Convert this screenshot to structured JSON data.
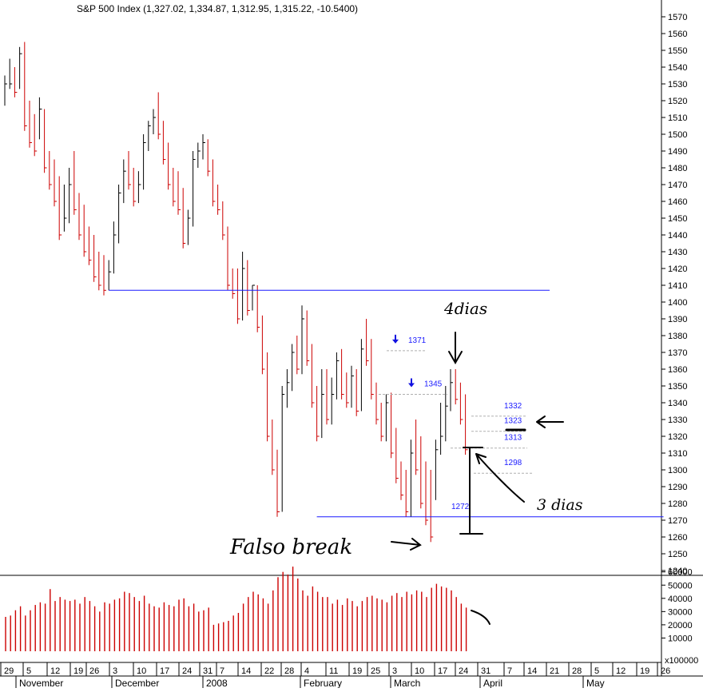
{
  "chart_data": {
    "type": "ohlc",
    "title": "S&P 500 Index (1,327.02, 1,334.87, 1,312.95, 1,315.22, -10.5400)",
    "colors": {
      "up": "#000000",
      "down": "#cc0000",
      "support": "#1a1aff",
      "level_text": "#1a1aff",
      "level_line": "#b0b0b0"
    },
    "price_axis": {
      "min": 1230,
      "max": 1575,
      "ticks": [
        1240,
        1250,
        1260,
        1270,
        1280,
        1290,
        1300,
        1310,
        1320,
        1330,
        1340,
        1350,
        1360,
        1370,
        1380,
        1390,
        1400,
        1410,
        1420,
        1430,
        1440,
        1450,
        1460,
        1470,
        1480,
        1490,
        1500,
        1510,
        1520,
        1530,
        1540,
        1550,
        1560,
        1570
      ]
    },
    "volume_axis": {
      "min": 0,
      "max": 65000,
      "ticks": [
        10000,
        20000,
        30000,
        40000,
        50000,
        60000
      ],
      "tick_labels": [
        "10000",
        "20000",
        "30000",
        "40000",
        "50000",
        "60000"
      ],
      "unit_label": "x100000"
    },
    "x_ticks": [
      "29",
      "5",
      "12",
      "19",
      "26",
      "3",
      "10",
      "17",
      "24",
      "31",
      "7",
      "14",
      "22",
      "28",
      "4",
      "11",
      "19",
      "25",
      "3",
      "10",
      "17",
      "24",
      "31",
      "7",
      "14",
      "21",
      "28",
      "5",
      "12",
      "19",
      "26"
    ],
    "months": [
      "November",
      "December",
      "2008",
      "February",
      "March",
      "April",
      "May"
    ],
    "bars": [
      [
        1520,
        1535,
        1530
      ],
      [
        1538,
        1545,
        1530
      ],
      [
        1532,
        1540,
        1525
      ],
      [
        1530,
        1552,
        1548
      ],
      [
        1540,
        1555,
        1505
      ],
      [
        1515,
        1520,
        1495
      ],
      [
        1505,
        1512,
        1490
      ],
      [
        1500,
        1522,
        1515
      ],
      [
        1510,
        1515,
        1480
      ],
      [
        1478,
        1490,
        1470
      ],
      [
        1470,
        1485,
        1460
      ],
      [
        1462,
        1475,
        1440
      ],
      [
        1445,
        1470,
        1450
      ],
      [
        1450,
        1480,
        1470
      ],
      [
        1468,
        1490,
        1455
      ],
      [
        1455,
        1465,
        1440
      ],
      [
        1442,
        1458,
        1430
      ],
      [
        1430,
        1445,
        1425
      ],
      [
        1425,
        1440,
        1415
      ],
      [
        1418,
        1430,
        1410
      ],
      [
        1412,
        1428,
        1407
      ],
      [
        1410,
        1425,
        1418
      ],
      [
        1420,
        1448,
        1440
      ],
      [
        1438,
        1470,
        1465
      ],
      [
        1462,
        1485,
        1478
      ],
      [
        1480,
        1490,
        1470
      ],
      [
        1472,
        1480,
        1460
      ],
      [
        1462,
        1478,
        1470
      ],
      [
        1470,
        1500,
        1495
      ],
      [
        1493,
        1508,
        1505
      ],
      [
        1503,
        1515,
        1510
      ],
      [
        1512,
        1525,
        1500
      ],
      [
        1500,
        1508,
        1485
      ],
      [
        1484,
        1495,
        1470
      ],
      [
        1470,
        1480,
        1460
      ],
      [
        1460,
        1478,
        1455
      ],
      [
        1455,
        1468,
        1435
      ],
      [
        1437,
        1455,
        1450
      ],
      [
        1448,
        1490,
        1485
      ],
      [
        1483,
        1495,
        1490
      ],
      [
        1488,
        1500,
        1495
      ],
      [
        1493,
        1497,
        1478
      ],
      [
        1477,
        1485,
        1460
      ],
      [
        1460,
        1470,
        1455
      ],
      [
        1455,
        1460,
        1440
      ],
      [
        1440,
        1445,
        1410
      ],
      [
        1412,
        1420,
        1405
      ],
      [
        1405,
        1420,
        1390
      ],
      [
        1392,
        1430,
        1420
      ],
      [
        1418,
        1425,
        1395
      ],
      [
        1398,
        1410,
        1410
      ],
      [
        1410,
        1410,
        1385
      ],
      [
        1385,
        1392,
        1360
      ],
      [
        1360,
        1370,
        1320
      ],
      [
        1320,
        1330,
        1300
      ],
      [
        1300,
        1312,
        1275
      ],
      [
        1278,
        1350,
        1345
      ],
      [
        1340,
        1360,
        1352
      ],
      [
        1350,
        1375,
        1370
      ],
      [
        1365,
        1380,
        1360
      ],
      [
        1360,
        1398,
        1390
      ],
      [
        1388,
        1395,
        1365
      ],
      [
        1365,
        1375,
        1340
      ],
      [
        1338,
        1350,
        1320
      ],
      [
        1322,
        1360,
        1345
      ],
      [
        1342,
        1360,
        1330
      ],
      [
        1330,
        1355,
        1345
      ],
      [
        1345,
        1370,
        1365
      ],
      [
        1363,
        1372,
        1345
      ],
      [
        1345,
        1358,
        1340
      ],
      [
        1340,
        1362,
        1356
      ],
      [
        1355,
        1360,
        1335
      ],
      [
        1338,
        1378,
        1372
      ],
      [
        1370,
        1390,
        1365
      ],
      [
        1368,
        1378,
        1345
      ],
      [
        1345,
        1352,
        1330
      ],
      [
        1330,
        1340,
        1320
      ],
      [
        1320,
        1345,
        1340
      ],
      [
        1338,
        1346,
        1310
      ],
      [
        1310,
        1325,
        1295
      ],
      [
        1296,
        1305,
        1285
      ],
      [
        1285,
        1300,
        1275
      ],
      [
        1275,
        1318,
        1310
      ],
      [
        1308,
        1330,
        1300
      ],
      [
        1300,
        1320,
        1280
      ],
      [
        1282,
        1305,
        1270
      ],
      [
        1272,
        1300,
        1260
      ],
      [
        1285,
        1318,
        1312
      ],
      [
        1312,
        1340,
        1320
      ],
      [
        1320,
        1350,
        1338
      ],
      [
        1338,
        1360,
        1352
      ],
      [
        1350,
        1360,
        1342
      ],
      [
        1342,
        1352,
        1330
      ],
      [
        1330,
        1345,
        1312
      ]
    ],
    "volumes": [
      26000,
      27000,
      31000,
      34000,
      27000,
      31000,
      35000,
      37000,
      36000,
      47000,
      38000,
      41000,
      39000,
      38000,
      39000,
      36000,
      41000,
      38000,
      34000,
      30000,
      37000,
      36000,
      39000,
      40000,
      45000,
      44000,
      41000,
      38000,
      42000,
      36000,
      34000,
      33000,
      37000,
      35000,
      34000,
      39000,
      40000,
      34000,
      36000,
      30000,
      31000,
      33000,
      20000,
      21000,
      22000,
      23000,
      27000,
      29000,
      36000,
      41000,
      45000,
      43000,
      40000,
      36000,
      46000,
      56000,
      60000,
      58000,
      64000,
      55000,
      46000,
      42000,
      49000,
      45000,
      41000,
      41000,
      36000,
      39000,
      35000,
      40000,
      38000,
      34000,
      38000,
      41000,
      42000,
      40000,
      39000,
      37000,
      42000,
      44000,
      41000,
      45000,
      43000,
      46000,
      45000,
      41000,
      48000,
      51000,
      49000,
      48000,
      46000,
      41000,
      36000,
      33000
    ],
    "support_lines": [
      {
        "price": 1407,
        "from_bar": 21,
        "to_bar": 110
      },
      {
        "price": 1272,
        "from_bar": 63,
        "to_bar": 133
      }
    ],
    "levels": [
      {
        "label": "1371",
        "price": 1371,
        "arrow": true
      },
      {
        "label": "1345",
        "price": 1345,
        "arrow": true
      },
      {
        "label": "1332",
        "price": 1332,
        "arrow": false
      },
      {
        "label": "1323",
        "price": 1323,
        "arrow": false
      },
      {
        "label": "1313",
        "price": 1313,
        "arrow": false
      },
      {
        "label": "1298",
        "price": 1298,
        "arrow": false
      },
      {
        "label": "1272",
        "price": 1272,
        "arrow": false
      }
    ],
    "annotations": [
      {
        "text": "4dias"
      },
      {
        "text": "3 dias"
      },
      {
        "text": "Falso break"
      }
    ]
  }
}
